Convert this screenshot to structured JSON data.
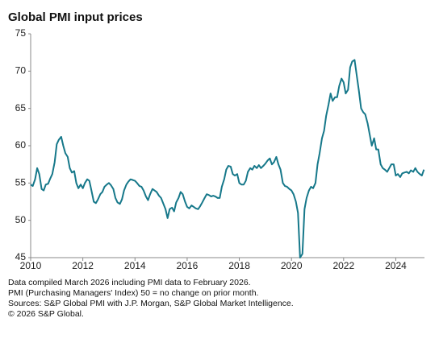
{
  "chart_data": {
    "type": "line",
    "title": "Global PMI input prices",
    "notes": [
      "Data compiled March 2026 including PMI data to February 2026.",
      "PMI (Purchasing Managers' Index) 50 = no change on prior month.",
      "Sources: S&P Global PMI with J.P. Morgan, S&P Global Market Intelligence.",
      "© 2026 S&P Global."
    ],
    "xlim": [
      2010,
      2025.1
    ],
    "xticks": [
      2010,
      2012,
      2014,
      2016,
      2018,
      2020,
      2022,
      2024
    ],
    "ylim": [
      45,
      75
    ],
    "yticks": [
      45,
      50,
      55,
      60,
      65,
      70,
      75
    ],
    "grid": false,
    "x": [
      2010.0,
      2010.08,
      2010.17,
      2010.25,
      2010.33,
      2010.42,
      2010.5,
      2010.58,
      2010.67,
      2010.75,
      2010.83,
      2010.92,
      2011.0,
      2011.08,
      2011.17,
      2011.25,
      2011.33,
      2011.42,
      2011.5,
      2011.58,
      2011.67,
      2011.75,
      2011.83,
      2011.92,
      2012.0,
      2012.08,
      2012.17,
      2012.25,
      2012.33,
      2012.42,
      2012.5,
      2012.58,
      2012.67,
      2012.75,
      2012.83,
      2012.92,
      2013.0,
      2013.08,
      2013.17,
      2013.25,
      2013.33,
      2013.42,
      2013.5,
      2013.58,
      2013.67,
      2013.75,
      2013.83,
      2013.92,
      2014.0,
      2014.08,
      2014.17,
      2014.25,
      2014.33,
      2014.42,
      2014.5,
      2014.58,
      2014.67,
      2014.75,
      2014.83,
      2014.92,
      2015.0,
      2015.08,
      2015.17,
      2015.25,
      2015.33,
      2015.42,
      2015.5,
      2015.58,
      2015.67,
      2015.75,
      2015.83,
      2015.92,
      2016.0,
      2016.08,
      2016.17,
      2016.25,
      2016.33,
      2016.42,
      2016.5,
      2016.58,
      2016.67,
      2016.75,
      2016.83,
      2016.92,
      2017.0,
      2017.08,
      2017.17,
      2017.25,
      2017.33,
      2017.42,
      2017.5,
      2017.58,
      2017.67,
      2017.75,
      2017.83,
      2017.92,
      2018.0,
      2018.08,
      2018.17,
      2018.25,
      2018.33,
      2018.42,
      2018.5,
      2018.58,
      2018.67,
      2018.75,
      2018.83,
      2018.92,
      2019.0,
      2019.08,
      2019.17,
      2019.25,
      2019.33,
      2019.42,
      2019.5,
      2019.58,
      2019.67,
      2019.75,
      2019.83,
      2019.92,
      2020.0,
      2020.08,
      2020.17,
      2020.25,
      2020.33,
      2020.42,
      2020.5,
      2020.58,
      2020.67,
      2020.75,
      2020.83,
      2020.92,
      2021.0,
      2021.08,
      2021.17,
      2021.25,
      2021.33,
      2021.42,
      2021.5,
      2021.58,
      2021.67,
      2021.75,
      2021.83,
      2021.92,
      2022.0,
      2022.08,
      2022.17,
      2022.25,
      2022.33,
      2022.42,
      2022.5,
      2022.58,
      2022.67,
      2022.75,
      2022.83,
      2022.92,
      2023.0,
      2023.08,
      2023.17,
      2023.25,
      2023.33,
      2023.42,
      2023.5,
      2023.58,
      2023.67,
      2023.75,
      2023.83,
      2023.92,
      2024.0,
      2024.08,
      2024.17,
      2024.25,
      2024.33,
      2024.42,
      2024.5,
      2024.58,
      2024.67,
      2024.75,
      2024.83,
      2024.92,
      2025.0,
      2025.08
    ],
    "series": [
      {
        "color": "#16788a",
        "values": [
          54.8,
          54.6,
          55.5,
          57.0,
          56.2,
          54.2,
          54.0,
          54.8,
          54.9,
          55.6,
          56.2,
          57.8,
          60.2,
          60.8,
          61.2,
          60.0,
          59.0,
          58.5,
          57.0,
          56.4,
          56.6,
          55.0,
          54.3,
          54.8,
          54.3,
          55.0,
          55.5,
          55.3,
          54.0,
          52.5,
          52.3,
          52.8,
          53.5,
          53.8,
          54.5,
          54.8,
          55.0,
          54.7,
          54.2,
          53.0,
          52.4,
          52.2,
          52.8,
          54.0,
          54.8,
          55.2,
          55.5,
          55.4,
          55.3,
          55.0,
          54.6,
          54.5,
          54.0,
          53.2,
          52.7,
          53.5,
          54.2,
          54.0,
          53.8,
          53.3,
          53.0,
          52.3,
          51.5,
          50.3,
          51.5,
          51.7,
          51.2,
          52.4,
          53.0,
          53.8,
          53.5,
          52.5,
          51.8,
          51.6,
          52.0,
          51.8,
          51.6,
          51.5,
          51.9,
          52.4,
          53.0,
          53.5,
          53.4,
          53.2,
          53.3,
          53.2,
          53.0,
          53.0,
          54.5,
          55.5,
          56.8,
          57.3,
          57.2,
          56.2,
          56.0,
          56.2,
          55.0,
          54.8,
          54.8,
          55.3,
          56.5,
          57.0,
          56.8,
          57.3,
          57.0,
          57.4,
          57.0,
          57.3,
          57.6,
          58.0,
          58.3,
          57.5,
          57.8,
          58.5,
          57.5,
          56.8,
          55.0,
          54.6,
          54.5,
          54.2,
          54.0,
          53.5,
          52.5,
          51.0,
          45.0,
          45.5,
          51.5,
          53.0,
          54.0,
          54.5,
          54.3,
          55.0,
          57.5,
          59.0,
          61.0,
          62.0,
          64.0,
          65.5,
          67.0,
          66.0,
          66.5,
          66.5,
          68.0,
          69.0,
          68.5,
          67.0,
          67.5,
          70.5,
          71.3,
          71.5,
          69.5,
          67.5,
          65.0,
          64.5,
          64.2,
          63.0,
          61.5,
          60.0,
          61.0,
          59.5,
          59.5,
          57.5,
          57.0,
          56.8,
          56.5,
          57.0,
          57.5,
          57.5,
          56.0,
          56.2,
          55.8,
          56.3,
          56.4,
          56.5,
          56.3,
          56.7,
          56.5,
          57.0,
          56.5,
          56.2,
          56.0,
          56.8
        ]
      }
    ]
  }
}
